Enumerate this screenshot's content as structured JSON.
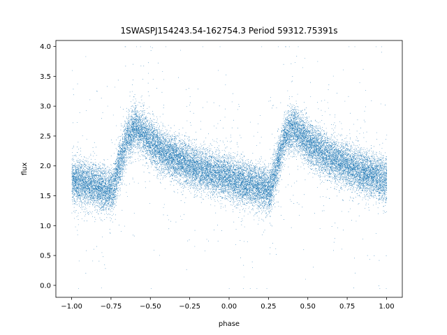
{
  "chart_data": {
    "type": "scatter",
    "title": "1SWASPJ154243.54-162754.3 Period 59312.75391s",
    "xlabel": "phase",
    "ylabel": "flux",
    "xlim": [
      -1.1,
      1.1
    ],
    "ylim": [
      -0.2,
      4.1
    ],
    "xticks": [
      -1.0,
      -0.75,
      -0.5,
      -0.25,
      0.0,
      0.25,
      0.5,
      0.75,
      1.0
    ],
    "xtick_labels": [
      "−1.00",
      "−0.75",
      "−0.50",
      "−0.25",
      "0.00",
      "0.25",
      "0.50",
      "0.75",
      "1.00"
    ],
    "yticks": [
      0.0,
      0.5,
      1.0,
      1.5,
      2.0,
      2.5,
      3.0,
      3.5,
      4.0
    ],
    "ytick_labels": [
      "0.0",
      "0.5",
      "1.0",
      "1.5",
      "2.0",
      "2.5",
      "3.0",
      "3.5",
      "4.0"
    ],
    "grid": false,
    "marker_color": "#1f77b4",
    "series": [
      {
        "curve": {
          "x": [
            -1.0,
            -0.9,
            -0.8,
            -0.74,
            -0.7,
            -0.65,
            -0.6,
            -0.55,
            -0.5,
            -0.4,
            -0.3,
            -0.2,
            -0.1,
            0.0,
            0.1,
            0.2,
            0.26,
            0.3,
            0.35,
            0.4,
            0.45,
            0.5,
            0.6,
            0.7,
            0.8,
            0.9,
            1.0
          ],
          "y": [
            1.75,
            1.7,
            1.62,
            1.6,
            2.0,
            2.45,
            2.65,
            2.55,
            2.4,
            2.2,
            2.07,
            1.95,
            1.87,
            1.8,
            1.72,
            1.65,
            1.6,
            2.0,
            2.45,
            2.65,
            2.55,
            2.4,
            2.2,
            2.07,
            1.95,
            1.85,
            1.75
          ]
        },
        "scatter_sd": 0.18,
        "point_count": 26000
      }
    ]
  }
}
